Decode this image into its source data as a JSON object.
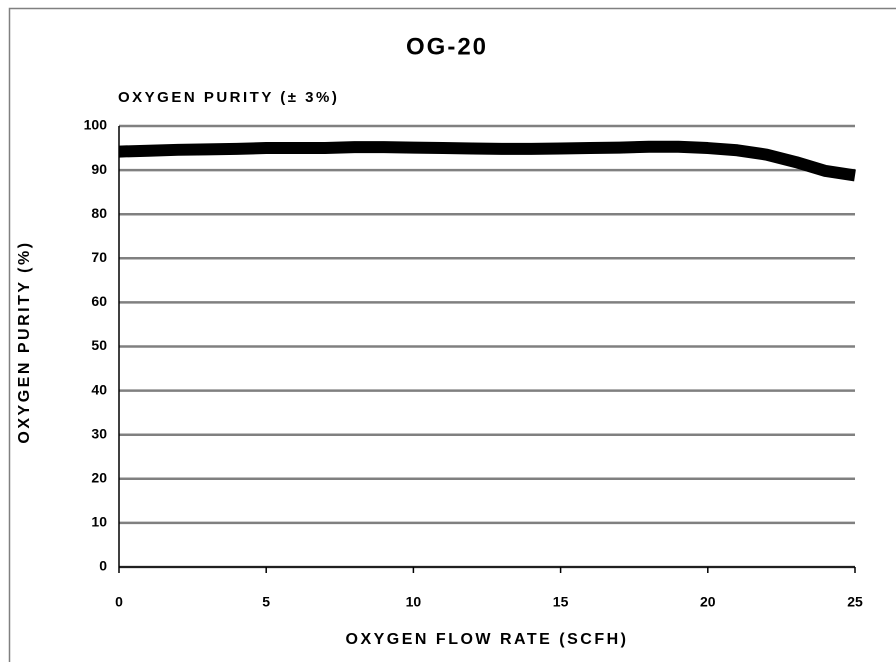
{
  "chart_data": {
    "type": "line",
    "title": "OG-20",
    "subtitle": "OXYGEN PURITY (± 3%)",
    "x_label": "OXYGEN FLOW RATE (SCFH)",
    "y_label": "OXYGEN PURITY (%)",
    "x": [
      0,
      1,
      2,
      3,
      4,
      5,
      6,
      7,
      8,
      9,
      10,
      11,
      12,
      13,
      14,
      15,
      16,
      17,
      18,
      19,
      20,
      21,
      22,
      23,
      24,
      25
    ],
    "series": [
      {
        "color": "#000000",
        "values": [
          94.2,
          94.4,
          94.6,
          94.7,
          94.8,
          95,
          95,
          95,
          95.2,
          95.2,
          95.1,
          95,
          94.9,
          94.8,
          94.8,
          94.9,
          95,
          95.1,
          95.3,
          95.3,
          95,
          94.5,
          93.5,
          91.8,
          89.8,
          88.8
        ]
      }
    ],
    "xlim": [
      0,
      25
    ],
    "xticks": [
      0,
      5,
      10,
      15,
      20,
      25
    ],
    "ylim": [
      0,
      100
    ],
    "yticks": [
      0,
      10,
      20,
      30,
      40,
      50,
      60,
      70,
      80,
      90,
      100
    ],
    "grid": true
  }
}
